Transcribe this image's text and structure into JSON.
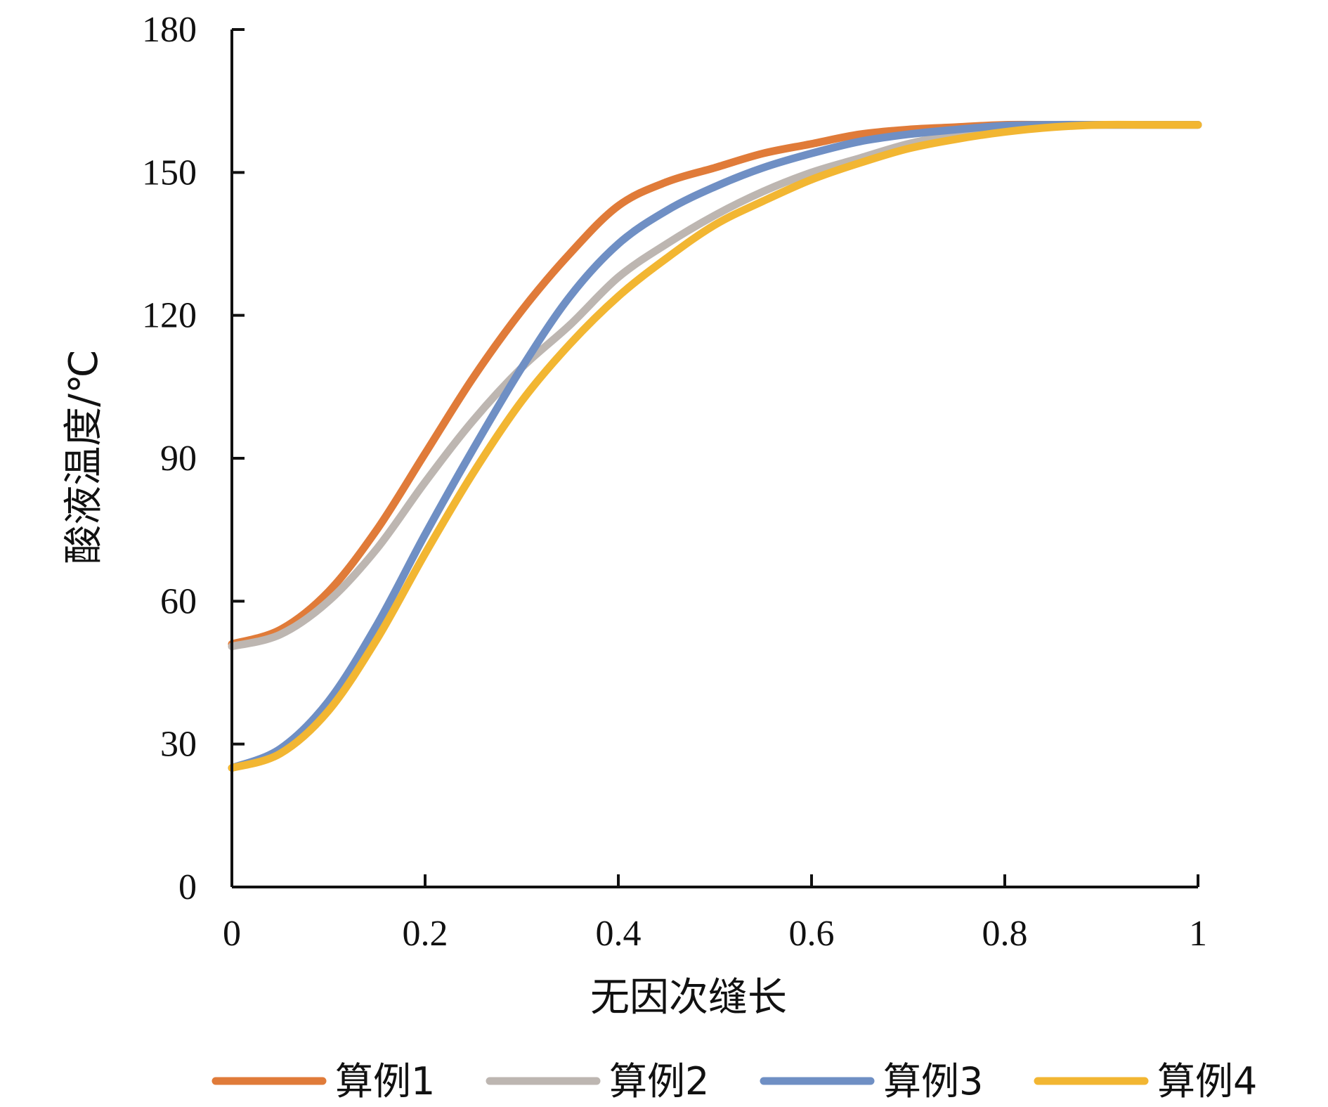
{
  "chart_data": {
    "type": "line",
    "title": "",
    "xlabel": "无因次缝长",
    "ylabel": "酸液温度/℃",
    "xlim": [
      0,
      1
    ],
    "ylim": [
      0,
      180
    ],
    "xticks": [
      0,
      0.2,
      0.4,
      0.6,
      0.8,
      1
    ],
    "xtick_labels": [
      "0",
      "0.2",
      "0.4",
      "0.6",
      "0.8",
      "1"
    ],
    "yticks": [
      0,
      30,
      60,
      90,
      120,
      150,
      180
    ],
    "ytick_labels": [
      "0",
      "30",
      "60",
      "90",
      "120",
      "150",
      "180"
    ],
    "grid": false,
    "legend_position": "bottom",
    "x": [
      0,
      0.05,
      0.1,
      0.15,
      0.2,
      0.25,
      0.3,
      0.35,
      0.4,
      0.45,
      0.5,
      0.55,
      0.6,
      0.65,
      0.7,
      0.75,
      0.8,
      0.85,
      0.9,
      0.95,
      1.0
    ],
    "series": [
      {
        "name": "算例1",
        "color": "#E07B39",
        "values": [
          51,
          54,
          62,
          75,
          91,
          107,
          121,
          133,
          143,
          148,
          151,
          154,
          156,
          158,
          159,
          159.5,
          160,
          160,
          160,
          160,
          160
        ]
      },
      {
        "name": "算例2",
        "color": "#BDB6B1",
        "values": [
          50.5,
          53,
          60,
          71,
          85,
          98,
          109,
          118,
          128,
          135,
          141,
          146,
          150,
          153,
          156,
          158,
          159.5,
          160,
          160,
          160,
          160
        ]
      },
      {
        "name": "算例3",
        "color": "#6F8FC4",
        "values": [
          25,
          29,
          39,
          55,
          74,
          92,
          109,
          124,
          135,
          142,
          147,
          151,
          154,
          156.5,
          158,
          159,
          159.8,
          160,
          160,
          160,
          160
        ]
      },
      {
        "name": "算例4",
        "color": "#F2B632",
        "values": [
          25,
          28,
          37,
          52,
          70,
          87,
          102,
          114,
          124,
          132,
          139,
          144,
          148.5,
          152,
          155,
          157,
          158.5,
          159.5,
          160,
          160,
          160
        ]
      }
    ]
  }
}
